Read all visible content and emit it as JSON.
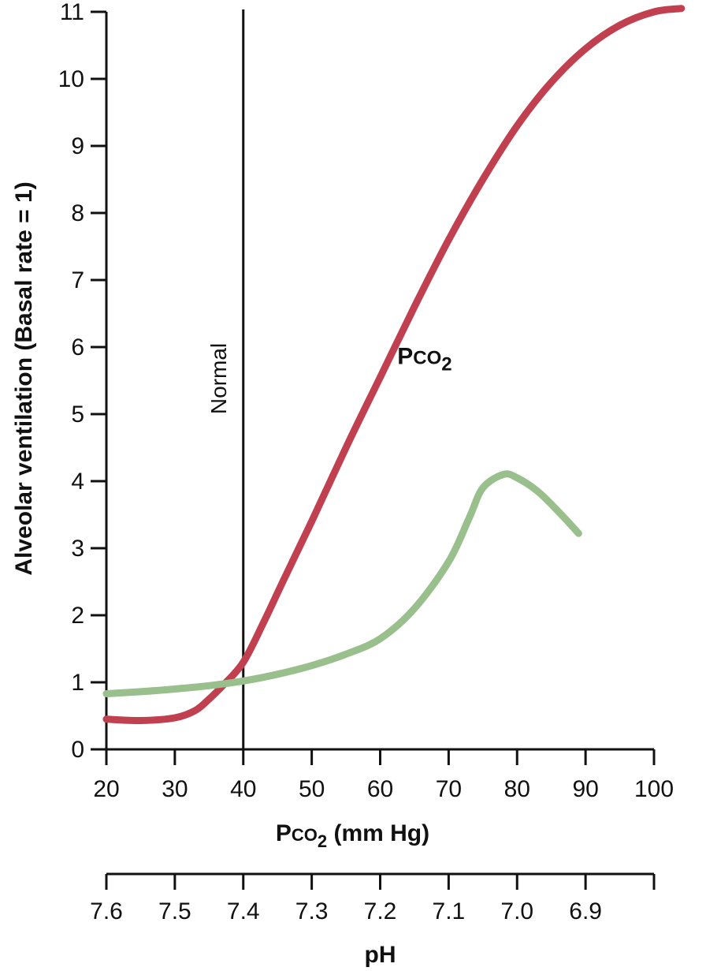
{
  "chart_data": {
    "type": "line",
    "title": "",
    "x_axis": {
      "label_prefix": "P",
      "label_small": "CO",
      "label_sub": "2",
      "label_suffix": " (mm Hg)",
      "range": [
        20,
        100
      ],
      "ticks": [
        20,
        30,
        40,
        50,
        60,
        70,
        80,
        90,
        100
      ]
    },
    "ph_axis": {
      "label": "pH",
      "ticks": [
        {
          "pco2": 20,
          "label": "7.6"
        },
        {
          "pco2": 30,
          "label": "7.5"
        },
        {
          "pco2": 40,
          "label": "7.4"
        },
        {
          "pco2": 50,
          "label": "7.3"
        },
        {
          "pco2": 60,
          "label": "7.2"
        },
        {
          "pco2": 70,
          "label": "7.1"
        },
        {
          "pco2": 80,
          "label": "7.0"
        },
        {
          "pco2": 90,
          "label": "6.9"
        },
        {
          "pco2": 100,
          "label": ""
        }
      ]
    },
    "y_axis": {
      "label": "Alveolar ventilation (Basal rate = 1)",
      "range": [
        0,
        11
      ],
      "ticks": [
        0,
        1,
        2,
        3,
        4,
        5,
        6,
        7,
        8,
        9,
        10,
        11
      ]
    },
    "reference_line": {
      "x": 40,
      "label": "Normal"
    },
    "series": [
      {
        "label_prefix": "P",
        "label_small": "CO",
        "label_sub": "2",
        "color": "#c04050",
        "points": [
          [
            20,
            0.45
          ],
          [
            25,
            0.43
          ],
          [
            30,
            0.47
          ],
          [
            33,
            0.58
          ],
          [
            35,
            0.75
          ],
          [
            37,
            0.95
          ],
          [
            40,
            1.3
          ],
          [
            43,
            1.9
          ],
          [
            46,
            2.55
          ],
          [
            50,
            3.4
          ],
          [
            55,
            4.5
          ],
          [
            60,
            5.55
          ],
          [
            65,
            6.6
          ],
          [
            70,
            7.6
          ],
          [
            75,
            8.5
          ],
          [
            80,
            9.3
          ],
          [
            85,
            9.95
          ],
          [
            90,
            10.45
          ],
          [
            95,
            10.8
          ],
          [
            100,
            11.0
          ],
          [
            104,
            11.05
          ]
        ]
      },
      {
        "label_prefix": "",
        "label_small": "",
        "label_sub": "",
        "color": "#98bf8c",
        "points": [
          [
            20,
            0.83
          ],
          [
            25,
            0.86
          ],
          [
            30,
            0.9
          ],
          [
            35,
            0.95
          ],
          [
            40,
            1.02
          ],
          [
            45,
            1.12
          ],
          [
            50,
            1.25
          ],
          [
            55,
            1.42
          ],
          [
            60,
            1.65
          ],
          [
            65,
            2.1
          ],
          [
            70,
            2.8
          ],
          [
            73,
            3.45
          ],
          [
            75,
            3.9
          ],
          [
            78,
            4.1
          ],
          [
            80,
            4.05
          ],
          [
            83,
            3.85
          ],
          [
            86,
            3.55
          ],
          [
            89,
            3.22
          ]
        ]
      }
    ]
  }
}
